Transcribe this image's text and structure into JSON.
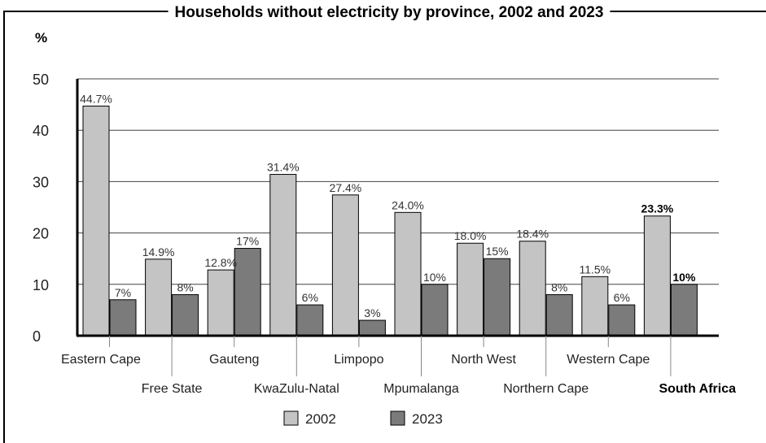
{
  "chart_data": {
    "type": "bar",
    "title": "Households without electricity by province, 2002 and 2023",
    "ylabel": "%",
    "xlabel": "",
    "ylim": [
      0,
      50
    ],
    "yticks": [
      0,
      10,
      20,
      30,
      40,
      50
    ],
    "grid": true,
    "legend_position": "bottom-center",
    "categories": [
      "Eastern Cape",
      "Free State",
      "Gauteng",
      "KwaZulu-Natal",
      "Limpopo",
      "Mpumalanga",
      "North West",
      "Northern Cape",
      "Western Cape",
      "South Africa"
    ],
    "highlight_category": "South Africa",
    "series": [
      {
        "name": "2002",
        "color": "#c4c4c4",
        "values": [
          44.7,
          14.9,
          12.8,
          31.4,
          27.4,
          24.0,
          18.0,
          18.4,
          11.5,
          23.3
        ],
        "labels": [
          "44.7%",
          "14.9%",
          "12.8%",
          "31.4%",
          "27.4%",
          "24.0%",
          "18.0%",
          "18.4%",
          "11.5%",
          "23.3%"
        ]
      },
      {
        "name": "2023",
        "color": "#7b7b7b",
        "values": [
          7,
          8,
          17,
          6,
          3,
          10,
          15,
          8,
          6,
          10
        ],
        "labels": [
          "7%",
          "8%",
          "17%",
          "6%",
          "3%",
          "10%",
          "15%",
          "8%",
          "6%",
          "10%"
        ]
      }
    ]
  }
}
